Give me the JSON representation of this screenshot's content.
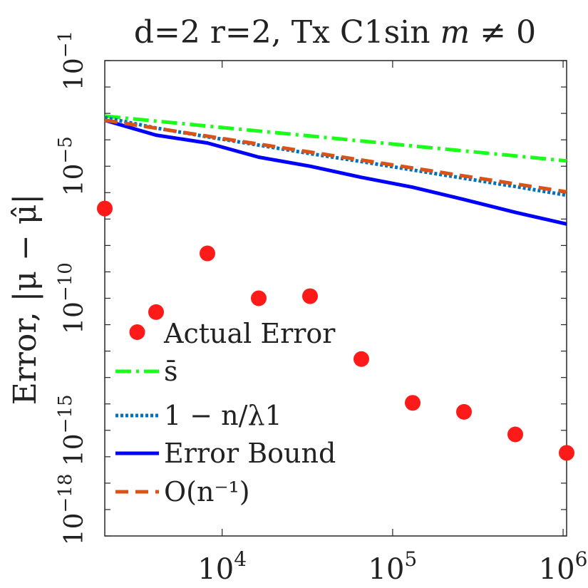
{
  "chart_data": {
    "type": "line",
    "title": "d=2 r=2, Tx C1sin m ≠ 0",
    "title_parts": {
      "main": "d=2 r=2, Tx C1sin ",
      "var": "m",
      "rel": " ≠ 0"
    },
    "xlabel": "",
    "ylabel": "Error, |μ − μ̂|",
    "x_scale": "log",
    "y_scale": "log",
    "xlim": [
      2048,
      1048576
    ],
    "ylim": [
      1e-19,
      0.1
    ],
    "x_ticks": [
      {
        "value": 10000,
        "base": "10",
        "exp": "4"
      },
      {
        "value": 100000,
        "base": "10",
        "exp": "5"
      },
      {
        "value": 1000000,
        "base": "10",
        "exp": "6"
      }
    ],
    "y_ticks": [
      {
        "value": 0.1,
        "base": "10",
        "exp": "−1"
      },
      {
        "value": 1e-05,
        "base": "10",
        "exp": "−5"
      },
      {
        "value": 1e-10,
        "base": "10",
        "exp": "−10"
      },
      {
        "value": 1e-15,
        "base": "10",
        "exp": "−15"
      },
      {
        "value": 1e-18,
        "base": "10",
        "exp": "−18"
      }
    ],
    "legend_position": "bottom-left",
    "grid": false,
    "series": [
      {
        "name": "Actual Error",
        "style": "markers",
        "color": "#ff1a1a",
        "x": [
          2048,
          4096,
          8192,
          16384,
          32768,
          65536,
          131072,
          262144,
          524288,
          1048576
        ],
        "y": [
          2.5e-07,
          3e-11,
          5e-09,
          1e-10,
          1.2e-10,
          5e-13,
          1.1e-14,
          5e-15,
          7e-16,
          1.4e-16
        ]
      },
      {
        "name": "s̄",
        "style": "dash-dot",
        "color": "#19ff19",
        "x": [
          2048,
          1048576
        ],
        "y": [
          0.00079,
          1.6e-05
        ]
      },
      {
        "name": "1 − n/λ1",
        "style": "dotted",
        "color": "#0072bd",
        "x": [
          2048,
          4096,
          8192,
          16384,
          32768,
          65536,
          131072,
          262144,
          524288,
          1048576
        ],
        "y": [
          0.0007,
          0.00028,
          0.00013,
          6.3e-05,
          3e-05,
          1.5e-05,
          7.2e-06,
          3.5e-06,
          1.7e-06,
          8e-07
        ]
      },
      {
        "name": "Error Bound",
        "style": "solid",
        "color": "#0000ff",
        "x": [
          2048,
          4096,
          8192,
          16384,
          32768,
          65536,
          131072,
          262144,
          524288,
          1048576
        ],
        "y": [
          0.00055,
          0.00015,
          7.6e-05,
          2.2e-05,
          1e-05,
          3.8e-06,
          1.6e-06,
          5.5e-07,
          1.8e-07,
          6.5e-08
        ]
      },
      {
        "name": "O(n⁻¹)",
        "style": "dashed",
        "color": "#d95319",
        "x": [
          2048,
          1048576
        ],
        "y": [
          0.00055,
          1.07e-06
        ]
      }
    ]
  }
}
